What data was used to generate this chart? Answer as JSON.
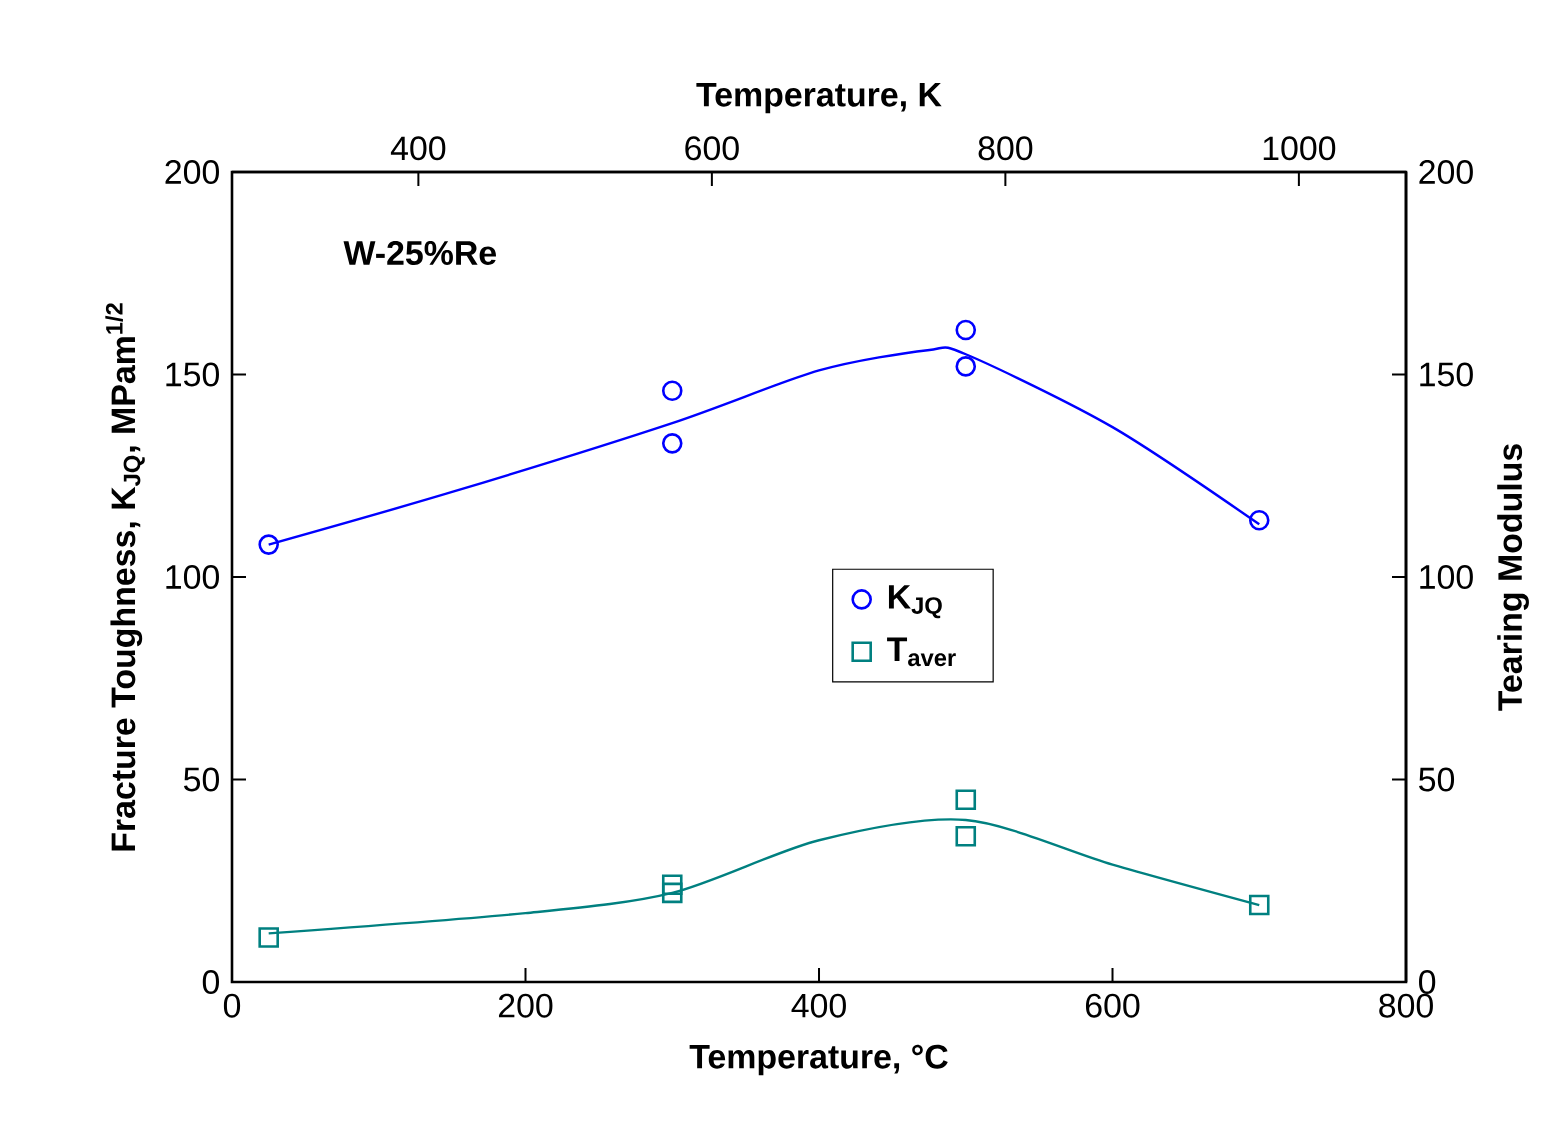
{
  "chart_data": {
    "type": "scatter",
    "xlabel": "Temperature, °C",
    "x2label": "Temperature,  K",
    "ylabel": "Fracture Toughness, K$_{JQ}$,  MPam$^{1/2}$",
    "y2label": "Tearing Modulus",
    "annotations": [
      "W-25%Re"
    ],
    "xlim": [
      0,
      800
    ],
    "xticks": [
      0,
      200,
      400,
      600,
      800
    ],
    "x2lim": [
      273,
      1073
    ],
    "x2ticks": [
      400,
      600,
      800,
      1000
    ],
    "ylim": [
      0,
      200
    ],
    "yticks": [
      0,
      50,
      100,
      150,
      200
    ],
    "y2lim": [
      0,
      200
    ],
    "y2ticks": [
      0,
      50,
      100,
      150,
      200
    ],
    "grid": false,
    "legend": "center",
    "series": [
      {
        "name": "K$_{JQ}$",
        "marker": "circle",
        "color": "#0000ff",
        "x": [
          25,
          300,
          300,
          500,
          500,
          700
        ],
        "values": [
          108,
          146,
          133,
          161,
          152,
          114
        ]
      },
      {
        "name": "T$_{aver}$",
        "marker": "square",
        "color": "#008080",
        "axis": "y2",
        "x": [
          25,
          300,
          300,
          500,
          500,
          700
        ],
        "values": [
          11,
          24,
          22,
          45,
          36,
          19
        ]
      },
      {
        "type": "line",
        "color": "#0000ff",
        "x": [
          25,
          150,
          300,
          400,
          474,
          500,
          600,
          700
        ],
        "values": [
          108,
          121,
          138,
          151,
          156,
          155,
          137,
          113
        ]
      },
      {
        "type": "line",
        "color": "#008080",
        "axis": "y2",
        "x": [
          25,
          200,
          300,
          400,
          500,
          600,
          700
        ],
        "values": [
          12,
          17,
          22,
          35,
          40,
          29,
          19
        ]
      }
    ]
  }
}
